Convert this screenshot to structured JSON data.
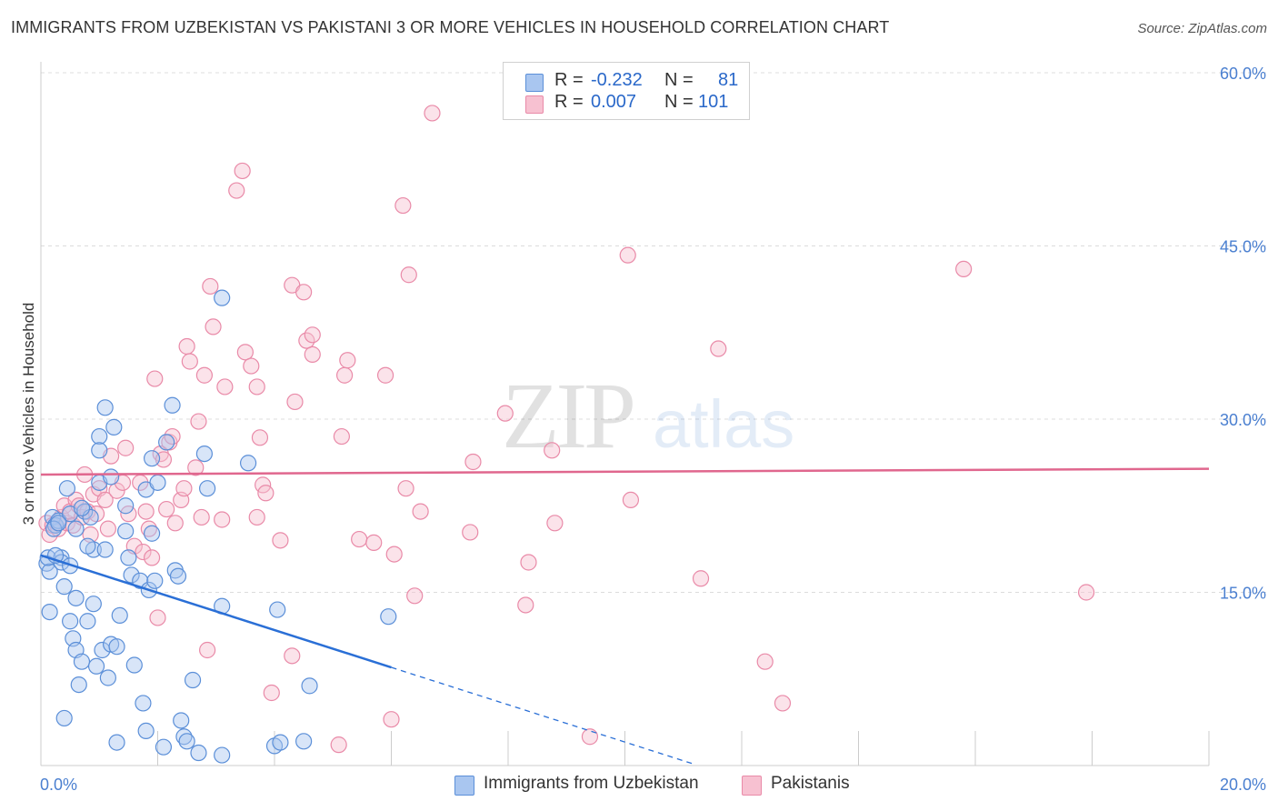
{
  "header": {
    "title": "IMMIGRANTS FROM UZBEKISTAN VS PAKISTANI 3 OR MORE VEHICLES IN HOUSEHOLD CORRELATION CHART",
    "source": "Source: ZipAtlas.com"
  },
  "watermark": {
    "zip": "ZIP",
    "atlas": "atlas"
  },
  "legend": {
    "rows": [
      {
        "r_label": "R =",
        "r_value": "-0.232",
        "n_label": "N =",
        "n_value": "81",
        "color": "#a9c6f0",
        "border": "#5b8fd8"
      },
      {
        "r_label": "R =",
        "r_value": "0.007",
        "n_label": "N =",
        "n_value": "101",
        "color": "#f7c1d1",
        "border": "#e98aa8"
      }
    ],
    "bottom": [
      {
        "label": "Immigrants from Uzbekistan",
        "color": "#a9c6f0",
        "border": "#5b8fd8"
      },
      {
        "label": "Pakistanis",
        "color": "#f7c1d1",
        "border": "#e98aa8"
      }
    ]
  },
  "chart_data": {
    "type": "scatter",
    "title": "IMMIGRANTS FROM UZBEKISTAN VS PAKISTANI 3 OR MORE VEHICLES IN HOUSEHOLD CORRELATION CHART",
    "xlabel": "",
    "ylabel": "3 or more Vehicles in Household",
    "xlim": [
      0,
      20
    ],
    "ylim": [
      0,
      60
    ],
    "x_ticks": [
      "0.0%",
      "20.0%"
    ],
    "y_ticks": [
      {
        "value": 15,
        "label": "15.0%"
      },
      {
        "value": 30,
        "label": "30.0%"
      },
      {
        "value": 45,
        "label": "45.0%"
      },
      {
        "value": 60,
        "label": "60.0%"
      }
    ],
    "grid": true,
    "legend_position": "top-center",
    "series": [
      {
        "name": "Immigrants from Uzbekistan",
        "color": "#a9c6f0",
        "stroke": "#5b8fd8",
        "trend": {
          "x0": 0,
          "y0": 18.2,
          "x1": 6.0,
          "y1": 8.5,
          "dash_to_x": 11.2,
          "line_color": "#2a6fd6"
        },
        "points": [
          [
            0.1,
            17.5
          ],
          [
            0.15,
            16.8
          ],
          [
            0.12,
            18.0
          ],
          [
            0.2,
            21.5
          ],
          [
            0.25,
            20.8
          ],
          [
            0.3,
            21.2
          ],
          [
            0.35,
            18.0
          ],
          [
            0.35,
            17.6
          ],
          [
            0.4,
            15.5
          ],
          [
            0.45,
            24.0
          ],
          [
            0.5,
            21.8
          ],
          [
            0.5,
            12.5
          ],
          [
            0.55,
            11.0
          ],
          [
            0.6,
            14.5
          ],
          [
            0.6,
            10.0
          ],
          [
            0.65,
            7.0
          ],
          [
            0.7,
            9.0
          ],
          [
            0.75,
            22.0
          ],
          [
            0.8,
            12.5
          ],
          [
            0.85,
            21.5
          ],
          [
            0.9,
            14.0
          ],
          [
            0.9,
            18.7
          ],
          [
            0.95,
            8.6
          ],
          [
            1.0,
            28.5
          ],
          [
            1.0,
            27.3
          ],
          [
            1.05,
            10.0
          ],
          [
            1.1,
            31.0
          ],
          [
            1.1,
            18.7
          ],
          [
            1.15,
            7.6
          ],
          [
            1.2,
            10.5
          ],
          [
            1.25,
            29.3
          ],
          [
            1.3,
            10.3
          ],
          [
            1.35,
            13.0
          ],
          [
            1.45,
            20.3
          ],
          [
            1.5,
            18.0
          ],
          [
            1.55,
            16.5
          ],
          [
            1.6,
            8.7
          ],
          [
            1.7,
            16.0
          ],
          [
            1.75,
            5.4
          ],
          [
            1.8,
            23.9
          ],
          [
            1.85,
            15.2
          ],
          [
            1.9,
            26.6
          ],
          [
            1.9,
            20.1
          ],
          [
            2.0,
            24.5
          ],
          [
            2.1,
            1.6
          ],
          [
            2.25,
            31.2
          ],
          [
            2.3,
            16.9
          ],
          [
            2.35,
            16.4
          ],
          [
            2.4,
            3.9
          ],
          [
            2.45,
            2.5
          ],
          [
            2.5,
            2.1
          ],
          [
            2.6,
            7.4
          ],
          [
            2.7,
            1.1
          ],
          [
            2.8,
            27.0
          ],
          [
            2.85,
            24.0
          ],
          [
            3.1,
            0.9
          ],
          [
            3.1,
            40.5
          ],
          [
            3.1,
            13.8
          ],
          [
            3.55,
            26.2
          ],
          [
            4.0,
            1.7
          ],
          [
            4.05,
            13.5
          ],
          [
            4.1,
            2.0
          ],
          [
            4.5,
            2.1
          ],
          [
            4.6,
            6.9
          ],
          [
            5.95,
            12.9
          ],
          [
            0.4,
            4.1
          ],
          [
            1.8,
            3.0
          ],
          [
            0.22,
            20.5
          ],
          [
            0.3,
            21.0
          ],
          [
            0.15,
            13.3
          ],
          [
            1.3,
            2.0
          ],
          [
            1.0,
            24.5
          ],
          [
            0.7,
            22.3
          ],
          [
            2.15,
            28.0
          ],
          [
            1.45,
            22.5
          ],
          [
            0.5,
            17.3
          ],
          [
            0.6,
            20.5
          ],
          [
            0.25,
            18.2
          ],
          [
            1.2,
            25.0
          ],
          [
            0.8,
            19.0
          ],
          [
            1.95,
            16.0
          ]
        ]
      },
      {
        "name": "Pakistanis",
        "color": "#f7c1d1",
        "stroke": "#e98aa8",
        "trend": {
          "x0": 0,
          "y0": 25.2,
          "x1": 20,
          "y1": 25.7,
          "line_color": "#e0678e"
        },
        "points": [
          [
            0.1,
            21.0
          ],
          [
            0.15,
            20.0
          ],
          [
            0.2,
            20.8
          ],
          [
            0.3,
            20.5
          ],
          [
            0.35,
            21.5
          ],
          [
            0.4,
            22.5
          ],
          [
            0.45,
            21.0
          ],
          [
            0.5,
            22.0
          ],
          [
            0.55,
            20.8
          ],
          [
            0.6,
            23.0
          ],
          [
            0.65,
            22.5
          ],
          [
            0.7,
            21.5
          ],
          [
            0.75,
            25.2
          ],
          [
            0.8,
            22.0
          ],
          [
            0.85,
            20.0
          ],
          [
            0.9,
            23.5
          ],
          [
            0.95,
            21.8
          ],
          [
            1.0,
            24.0
          ],
          [
            1.1,
            23.0
          ],
          [
            1.15,
            20.5
          ],
          [
            1.2,
            26.8
          ],
          [
            1.3,
            23.8
          ],
          [
            1.4,
            24.5
          ],
          [
            1.45,
            27.5
          ],
          [
            1.5,
            21.8
          ],
          [
            1.6,
            19.0
          ],
          [
            1.7,
            24.5
          ],
          [
            1.75,
            18.5
          ],
          [
            1.8,
            22.0
          ],
          [
            1.85,
            20.5
          ],
          [
            1.9,
            18.0
          ],
          [
            1.95,
            33.5
          ],
          [
            2.0,
            12.8
          ],
          [
            2.05,
            27.0
          ],
          [
            2.1,
            26.5
          ],
          [
            2.15,
            22.2
          ],
          [
            2.2,
            28.0
          ],
          [
            2.25,
            28.5
          ],
          [
            2.3,
            21.0
          ],
          [
            2.4,
            23.0
          ],
          [
            2.45,
            24.0
          ],
          [
            2.5,
            36.3
          ],
          [
            2.55,
            35.0
          ],
          [
            2.65,
            25.8
          ],
          [
            2.7,
            29.8
          ],
          [
            2.75,
            21.5
          ],
          [
            2.8,
            33.8
          ],
          [
            2.85,
            10.0
          ],
          [
            2.9,
            41.5
          ],
          [
            2.95,
            38.0
          ],
          [
            3.1,
            21.3
          ],
          [
            3.15,
            32.8
          ],
          [
            3.35,
            49.8
          ],
          [
            3.45,
            51.5
          ],
          [
            3.5,
            35.8
          ],
          [
            3.6,
            34.6
          ],
          [
            3.7,
            32.8
          ],
          [
            3.7,
            21.5
          ],
          [
            3.75,
            28.4
          ],
          [
            3.8,
            24.3
          ],
          [
            3.85,
            23.6
          ],
          [
            3.95,
            6.3
          ],
          [
            4.1,
            19.5
          ],
          [
            4.3,
            41.6
          ],
          [
            4.3,
            9.5
          ],
          [
            4.35,
            31.5
          ],
          [
            4.5,
            41.0
          ],
          [
            4.55,
            36.8
          ],
          [
            4.65,
            37.3
          ],
          [
            4.65,
            35.6
          ],
          [
            5.1,
            1.8
          ],
          [
            5.15,
            28.5
          ],
          [
            5.2,
            33.8
          ],
          [
            5.25,
            35.1
          ],
          [
            5.45,
            19.6
          ],
          [
            5.7,
            19.3
          ],
          [
            5.9,
            33.8
          ],
          [
            6.0,
            4.0
          ],
          [
            6.05,
            18.3
          ],
          [
            6.2,
            48.5
          ],
          [
            6.25,
            24.0
          ],
          [
            6.3,
            42.5
          ],
          [
            6.4,
            14.7
          ],
          [
            6.5,
            22.0
          ],
          [
            6.7,
            56.5
          ],
          [
            7.35,
            20.2
          ],
          [
            7.4,
            26.3
          ],
          [
            7.95,
            30.5
          ],
          [
            8.3,
            13.9
          ],
          [
            8.35,
            17.6
          ],
          [
            8.75,
            27.3
          ],
          [
            8.8,
            21.0
          ],
          [
            9.4,
            2.5
          ],
          [
            10.05,
            44.2
          ],
          [
            10.1,
            23.0
          ],
          [
            11.3,
            16.2
          ],
          [
            11.6,
            36.1
          ],
          [
            12.4,
            9.0
          ],
          [
            12.7,
            5.4
          ],
          [
            15.8,
            43.0
          ],
          [
            17.9,
            15.0
          ]
        ]
      }
    ]
  }
}
